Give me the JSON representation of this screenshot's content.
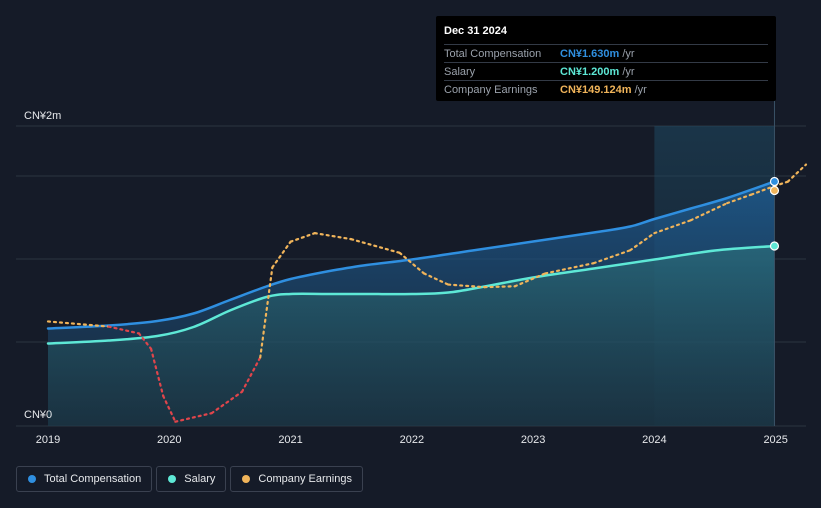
{
  "colors": {
    "total_compensation": "#2f8fe0",
    "salary": "#5ee8d6",
    "earnings": "#f0b45a",
    "earnings_negative": "#e0454b",
    "grid": "#2c3441",
    "background": "#151b28"
  },
  "tooltip": {
    "date": "Dec 31 2024",
    "rows": [
      {
        "name": "Total Compensation",
        "value": "CN¥1.630m",
        "unit": "/yr"
      },
      {
        "name": "Salary",
        "value": "CN¥1.200m",
        "unit": "/yr"
      },
      {
        "name": "Company Earnings",
        "value": "CN¥149.124m",
        "unit": "/yr"
      }
    ]
  },
  "legend": [
    {
      "label": "Total Compensation"
    },
    {
      "label": "Salary"
    },
    {
      "label": "Company Earnings"
    }
  ],
  "chart_data": {
    "type": "area",
    "x_ticks": [
      "2019",
      "2020",
      "2021",
      "2022",
      "2023",
      "2024",
      "2025"
    ],
    "y_ticks": [
      "CN¥0",
      "CN¥2m"
    ],
    "xlim": [
      2019.0,
      2025.25
    ],
    "ylim": [
      0,
      2.0
    ],
    "y_unit": "CN¥m",
    "series": [
      {
        "name": "Total Compensation",
        "x": [
          2019.0,
          2019.5,
          2019.9,
          2020.2,
          2020.5,
          2020.8,
          2021.0,
          2021.3,
          2021.6,
          2022.0,
          2022.5,
          2023.0,
          2023.5,
          2023.8,
          2024.0,
          2024.3,
          2024.6,
          2024.99
        ],
        "values": [
          0.65,
          0.67,
          0.7,
          0.75,
          0.84,
          0.93,
          0.98,
          1.03,
          1.07,
          1.11,
          1.17,
          1.23,
          1.29,
          1.33,
          1.38,
          1.45,
          1.52,
          1.63
        ]
      },
      {
        "name": "Salary",
        "x": [
          2019.0,
          2019.5,
          2019.9,
          2020.2,
          2020.5,
          2020.8,
          2021.0,
          2021.3,
          2021.6,
          2022.0,
          2022.3,
          2022.6,
          2023.0,
          2023.5,
          2024.0,
          2024.5,
          2024.99
        ],
        "values": [
          0.55,
          0.57,
          0.6,
          0.66,
          0.77,
          0.86,
          0.88,
          0.88,
          0.88,
          0.88,
          0.89,
          0.93,
          0.99,
          1.05,
          1.11,
          1.17,
          1.2
        ]
      },
      {
        "name": "Company Earnings",
        "unit": "CN¥m",
        "x": [
          2019.0,
          2019.5,
          2019.75,
          2019.85,
          2019.95,
          2020.05,
          2020.35,
          2020.6,
          2020.75,
          2020.85,
          2021.0,
          2021.2,
          2021.5,
          2021.9,
          2022.1,
          2022.3,
          2022.6,
          2022.85,
          2023.1,
          2023.5,
          2023.8,
          2024.0,
          2024.3,
          2024.6,
          2024.8,
          2024.99,
          2025.1,
          2025.25
        ],
        "values": [
          122,
          116,
          108,
          90,
          35,
          5,
          15,
          40,
          80,
          185,
          215,
          225,
          218,
          202,
          178,
          165,
          162,
          163,
          178,
          190,
          205,
          225,
          240,
          260,
          270,
          149.124,
          285,
          305
        ]
      }
    ]
  }
}
